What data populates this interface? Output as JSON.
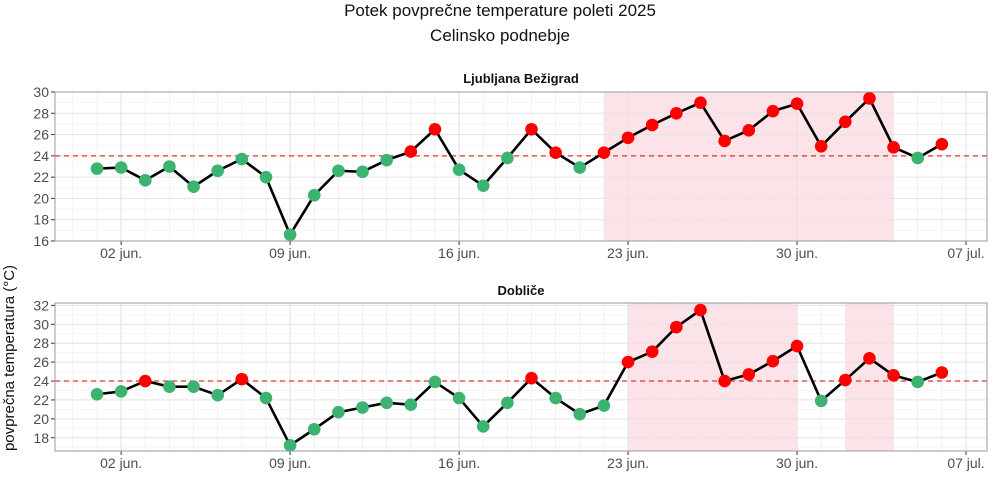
{
  "chart_data": {
    "type": "line",
    "title": "Potek povprečne temperature poleti 2025",
    "subtitle": "Celinsko podnebje",
    "ylabel": "povprečna temperatura (°C)",
    "xlabel": "",
    "threshold": 24,
    "colors": {
      "below": "#3cb371",
      "above": "#ff0000",
      "line": "#000000",
      "threshold": "#e8322e",
      "shade": "#fde0e5"
    },
    "grid": true,
    "xlim": [
      "2025-05-30",
      "2025-07-07"
    ],
    "x_ticks": [
      {
        "date": "2025-06-02",
        "label": "02 jun."
      },
      {
        "date": "2025-06-09",
        "label": "09 jun."
      },
      {
        "date": "2025-06-16",
        "label": "16 jun."
      },
      {
        "date": "2025-06-23",
        "label": "23 jun."
      },
      {
        "date": "2025-06-30",
        "label": "30 jun."
      },
      {
        "date": "2025-07-07",
        "label": "07 jul."
      }
    ],
    "dates": [
      "2025-06-01",
      "2025-06-02",
      "2025-06-03",
      "2025-06-04",
      "2025-06-05",
      "2025-06-06",
      "2025-06-07",
      "2025-06-08",
      "2025-06-09",
      "2025-06-10",
      "2025-06-11",
      "2025-06-12",
      "2025-06-13",
      "2025-06-14",
      "2025-06-15",
      "2025-06-16",
      "2025-06-17",
      "2025-06-18",
      "2025-06-19",
      "2025-06-20",
      "2025-06-21",
      "2025-06-22",
      "2025-06-23",
      "2025-06-24",
      "2025-06-25",
      "2025-06-26",
      "2025-06-27",
      "2025-06-28",
      "2025-06-29",
      "2025-06-30",
      "2025-07-01",
      "2025-07-02",
      "2025-07-03",
      "2025-07-04",
      "2025-07-05",
      "2025-07-06"
    ],
    "panels": [
      {
        "name": "Ljubljana Bežigrad",
        "ylim": [
          16,
          30
        ],
        "y_ticks": [
          "16",
          "18",
          "20",
          "22",
          "24",
          "26",
          "28",
          "30"
        ],
        "values": [
          22.8,
          22.9,
          21.7,
          23.0,
          21.1,
          22.6,
          23.7,
          22.0,
          16.6,
          20.3,
          22.6,
          22.5,
          23.6,
          24.4,
          26.5,
          22.7,
          21.2,
          23.8,
          26.5,
          24.3,
          22.9,
          24.3,
          25.7,
          26.9,
          28.0,
          29.0,
          25.4,
          26.4,
          28.2,
          28.9,
          24.9,
          27.2,
          29.4,
          24.8,
          23.8,
          25.1
        ],
        "shaded_periods": [
          [
            "2025-06-22",
            "2025-07-04"
          ]
        ]
      },
      {
        "name": "Dobliče",
        "ylim": [
          16.6,
          32.25
        ],
        "y_ticks": [
          "18",
          "20",
          "22",
          "24",
          "26",
          "28",
          "30",
          "32"
        ],
        "values": [
          22.6,
          22.9,
          24.0,
          23.4,
          23.4,
          22.5,
          24.2,
          22.2,
          17.2,
          18.9,
          20.7,
          21.2,
          21.7,
          21.5,
          23.9,
          22.2,
          19.2,
          21.7,
          24.3,
          22.2,
          20.5,
          21.4,
          26.0,
          27.1,
          29.7,
          31.5,
          24.0,
          24.7,
          26.1,
          27.7,
          21.9,
          24.1,
          26.4,
          24.6,
          23.9,
          24.9
        ],
        "above_flags": [
          false,
          false,
          true,
          false,
          false,
          false,
          true,
          false,
          false,
          false,
          false,
          false,
          false,
          false,
          false,
          false,
          false,
          false,
          true,
          false,
          false,
          false,
          true,
          true,
          true,
          true,
          true,
          true,
          true,
          true,
          false,
          true,
          true,
          true,
          false,
          true
        ],
        "shaded_periods": [
          [
            "2025-06-23",
            "2025-06-30"
          ],
          [
            "2025-07-02",
            "2025-07-04"
          ]
        ]
      }
    ]
  }
}
